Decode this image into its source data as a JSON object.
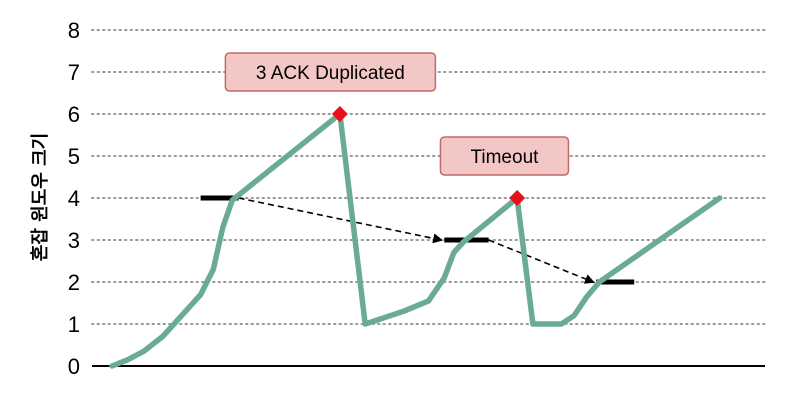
{
  "chart_data": {
    "type": "line",
    "title": "",
    "xlabel": "",
    "ylabel": "혼잡 윈도우 크기",
    "ylim": [
      0,
      8
    ],
    "yticks": [
      0,
      1,
      2,
      3,
      4,
      5,
      6,
      7,
      8
    ],
    "grid": "horizontal dotted",
    "x_tick_labels": false,
    "series": [
      {
        "color": "#6aab98",
        "points": [
          [
            0,
            0
          ],
          [
            0.25,
            0.15
          ],
          [
            0.5,
            0.35
          ],
          [
            0.8,
            0.7
          ],
          [
            1.1,
            1.2
          ],
          [
            1.4,
            1.7
          ],
          [
            1.6,
            2.3
          ],
          [
            1.75,
            3.3
          ],
          [
            1.9,
            3.95
          ],
          [
            3.6,
            6.0
          ],
          [
            4.0,
            1.0
          ],
          [
            4.6,
            1.3
          ],
          [
            5.0,
            1.55
          ],
          [
            5.25,
            2.1
          ],
          [
            5.4,
            2.7
          ],
          [
            5.55,
            2.95
          ],
          [
            6.4,
            4.0
          ],
          [
            6.65,
            1.0
          ],
          [
            7.1,
            1.0
          ],
          [
            7.3,
            1.2
          ],
          [
            7.5,
            1.65
          ],
          [
            7.7,
            2.0
          ],
          [
            9.6,
            4.0
          ]
        ]
      }
    ],
    "thresholds": [
      {
        "x_start": 1.4,
        "x_end": 2.0,
        "y": 4
      },
      {
        "x_start": 5.25,
        "x_end": 5.95,
        "y": 3
      },
      {
        "x_start": 7.65,
        "x_end": 8.25,
        "y": 2
      }
    ],
    "threshold_arrows": [
      {
        "from": [
          2.0,
          4
        ],
        "to": [
          5.2,
          3
        ]
      },
      {
        "from": [
          5.95,
          3
        ],
        "to": [
          7.6,
          2
        ]
      }
    ],
    "events": [
      {
        "label": "3 ACK Duplicated",
        "x": 3.6,
        "y": 6,
        "box_center": [
          3.45,
          7.0
        ]
      },
      {
        "label": "Timeout",
        "x": 6.4,
        "y": 4,
        "box_center": [
          6.2,
          5.0
        ]
      }
    ],
    "colors": {
      "line": "#6aab98",
      "marker": "#e8101a",
      "threshold": "#000000",
      "grid": "#9a9a9a",
      "annotation_fill": "#f4c7c7",
      "annotation_border": "#c06a6a"
    }
  }
}
